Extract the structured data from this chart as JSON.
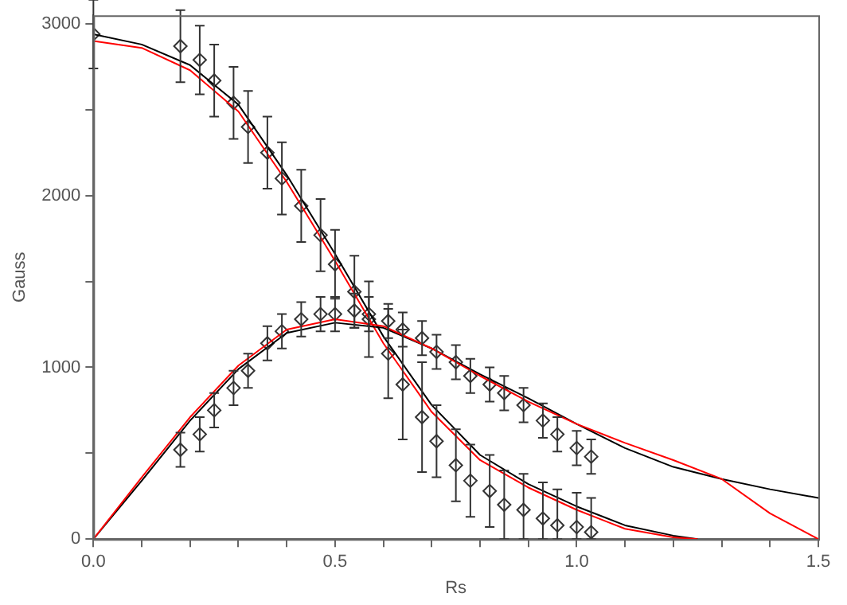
{
  "chart_data": {
    "type": "scatter",
    "xlabel": "Rs",
    "ylabel": "Gauss",
    "xlim": [
      0,
      1.5
    ],
    "ylim": [
      0,
      3050
    ],
    "xticks": [
      {
        "value": 0,
        "label": "0.0"
      },
      {
        "value": 0.1,
        "label": null
      },
      {
        "value": 0.2,
        "label": null
      },
      {
        "value": 0.3,
        "label": null
      },
      {
        "value": 0.4,
        "label": null
      },
      {
        "value": 0.5,
        "label": "0.5"
      },
      {
        "value": 0.6,
        "label": null
      },
      {
        "value": 0.7,
        "label": null
      },
      {
        "value": 0.8,
        "label": null
      },
      {
        "value": 0.9,
        "label": null
      },
      {
        "value": 1,
        "label": "1.0"
      },
      {
        "value": 1.1,
        "label": null
      },
      {
        "value": 1.2,
        "label": null
      },
      {
        "value": 1.3,
        "label": null
      },
      {
        "value": 1.4,
        "label": null
      },
      {
        "value": 1.5,
        "label": "1.5"
      }
    ],
    "yticks": [
      0,
      {
        "value": 500,
        "label": null
      },
      1000,
      {
        "value": 1500,
        "label": null
      },
      2000,
      {
        "value": 2500,
        "label": null
      },
      3000
    ],
    "grid": false,
    "legend": false,
    "series": [
      {
        "type": "scatter",
        "marker": "diamond",
        "color": "#333333",
        "x": [
          0,
          0.18,
          0.22,
          0.25,
          0.29,
          0.32,
          0.36,
          0.39,
          0.43,
          0.47,
          0.5,
          0.54,
          0.57,
          0.61,
          0.64,
          0.68,
          0.71,
          0.75,
          0.78,
          0.82,
          0.85,
          0.89,
          0.93,
          0.96,
          1.0,
          1.03
        ],
        "values": [
          2940,
          2870,
          2790,
          2670,
          2540,
          2400,
          2250,
          2100,
          1940,
          1770,
          1600,
          1440,
          1280,
          1080,
          900,
          710,
          570,
          430,
          340,
          280,
          200,
          170,
          120,
          80,
          70,
          40
        ],
        "errors": [
          200,
          210,
          200,
          210,
          210,
          210,
          210,
          210,
          210,
          210,
          200,
          210,
          220,
          260,
          320,
          320,
          210,
          210,
          210,
          210,
          200,
          [
            0,
            380
          ],
          [
            0,
            330
          ],
          [
            0,
            290
          ],
          [
            0,
            270
          ],
          [
            0,
            240
          ]
        ]
      },
      {
        "type": "scatter",
        "marker": "diamond",
        "color": "#333333",
        "x": [
          0.18,
          0.22,
          0.25,
          0.29,
          0.32,
          0.36,
          0.39,
          0.43,
          0.47,
          0.5,
          0.54,
          0.57,
          0.61,
          0.64,
          0.68,
          0.71,
          0.75,
          0.78,
          0.82,
          0.85,
          0.89,
          0.93,
          0.96,
          1.0,
          1.03
        ],
        "values": [
          520,
          610,
          750,
          880,
          980,
          1140,
          1210,
          1280,
          1310,
          1310,
          1330,
          1310,
          1270,
          1220,
          1170,
          1090,
          1030,
          950,
          900,
          850,
          780,
          690,
          610,
          530,
          480
        ],
        "errors": [
          100,
          100,
          100,
          100,
          100,
          100,
          100,
          100,
          100,
          100,
          100,
          100,
          100,
          100,
          100,
          100,
          100,
          100,
          100,
          100,
          100,
          100,
          100,
          100,
          100
        ]
      },
      {
        "type": "line",
        "marker": "none",
        "color": "#000000",
        "x": [
          0,
          0.1,
          0.2,
          0.3,
          0.4,
          0.5,
          0.6,
          0.7,
          0.8,
          0.9,
          1.0,
          1.1,
          1.2,
          1.25
        ],
        "values": [
          2940,
          2880,
          2760,
          2530,
          2120,
          1660,
          1180,
          780,
          490,
          320,
          190,
          80,
          20,
          0
        ]
      },
      {
        "type": "line",
        "marker": "none",
        "color": "#ff0000",
        "x": [
          0,
          0.1,
          0.2,
          0.3,
          0.4,
          0.5,
          0.6,
          0.7,
          0.8,
          0.9,
          1.0,
          1.1,
          1.2,
          1.25
        ],
        "values": [
          2900,
          2860,
          2730,
          2490,
          2080,
          1620,
          1140,
          740,
          460,
          300,
          170,
          60,
          10,
          0
        ]
      },
      {
        "type": "line",
        "marker": "none",
        "color": "#000000",
        "x": [
          0,
          0.1,
          0.2,
          0.3,
          0.4,
          0.5,
          0.6,
          0.7,
          0.8,
          0.9,
          1.0,
          1.1,
          1.2,
          1.3,
          1.4,
          1.5
        ],
        "values": [
          0,
          340,
          690,
          990,
          1200,
          1260,
          1230,
          1110,
          960,
          820,
          670,
          530,
          420,
          350,
          290,
          240
        ]
      },
      {
        "type": "line",
        "marker": "none",
        "color": "#ff0000",
        "x": [
          0,
          0.1,
          0.2,
          0.3,
          0.4,
          0.5,
          0.6,
          0.7,
          0.8,
          0.9,
          1.0,
          1.1,
          1.2,
          1.3,
          1.4,
          1.5
        ],
        "values": [
          0,
          360,
          710,
          1010,
          1220,
          1280,
          1240,
          1110,
          950,
          800,
          670,
          560,
          460,
          350,
          150,
          0
        ]
      }
    ]
  }
}
